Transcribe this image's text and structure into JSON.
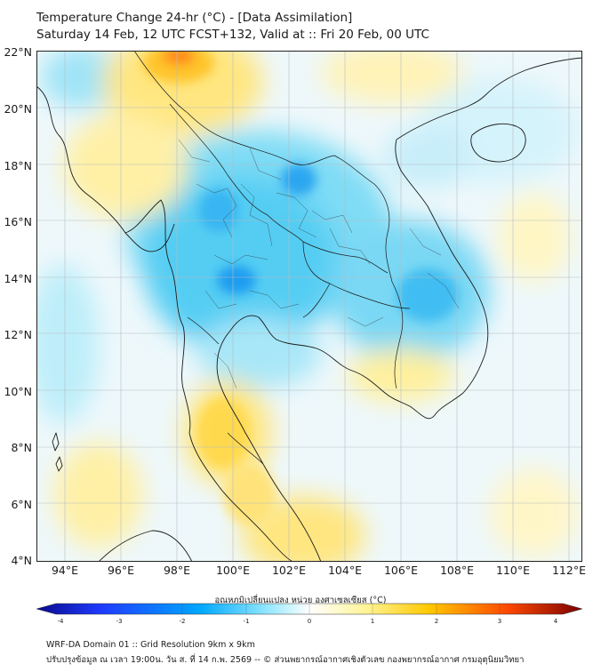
{
  "title": {
    "line1": "Temperature Change 24-hr (°C) - [Data Assimilation]",
    "line2": "Saturday 14 Feb, 12 UTC FCST+132, Valid at :: Fri 20 Feb, 00 UTC"
  },
  "axes": {
    "lat_labels": [
      "22°N",
      "20°N",
      "18°N",
      "16°N",
      "14°N",
      "12°N",
      "10°N",
      "8°N",
      "6°N",
      "4°N"
    ],
    "lon_labels": [
      "94°E",
      "96°E",
      "98°E",
      "100°E",
      "102°E",
      "104°E",
      "106°E",
      "108°E",
      "110°E",
      "112°E"
    ],
    "lat_range": [
      4,
      22
    ],
    "lon_range": [
      93,
      112.5
    ]
  },
  "colorbar": {
    "title": "อุณหภูมิเปลี่ยนแปลง หน่วย องศาเซลเซียส (°C)",
    "ticks": [
      "-4",
      "-3",
      "-2",
      "-1",
      "0",
      "1",
      "2",
      "3",
      "4"
    ],
    "range": [
      -4,
      4
    ],
    "colors": [
      "#0a0a8c",
      "#1e3cff",
      "#00a0ff",
      "#8ee6ff",
      "#ffffff",
      "#fff59a",
      "#ffc800",
      "#ff5a00",
      "#8c0000"
    ]
  },
  "footer": {
    "line1": "WRF-DA Domain 01 :: Grid Resolution 9km x 9km",
    "line2": "ปรับปรุงข้อมูล ณ เวลา 19:00น. วัน ส. ที่ 14 ก.พ. 2569 -- © ส่วนพยากรณ์อากาศเชิงตัวเลข กองพยากรณ์อากาศ กรมอุตุนิยมวิทยา"
  }
}
